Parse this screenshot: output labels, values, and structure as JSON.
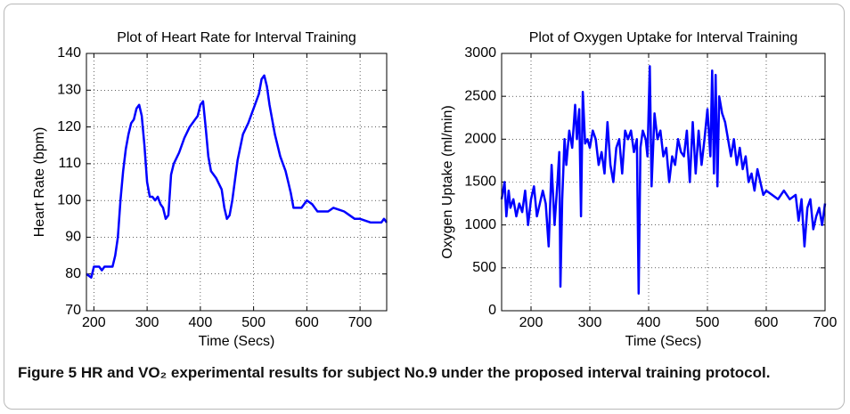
{
  "chart_data": [
    {
      "type": "line",
      "title": "Plot of Heart Rate for Interval Training",
      "x_label": "Time (Secs)",
      "y_label": "Heart Rate (bpm)",
      "xlim": [
        186,
        750
      ],
      "xticks": [
        200,
        300,
        400,
        500,
        600,
        700
      ],
      "ylim": [
        70,
        140
      ],
      "yticks": [
        70,
        80,
        90,
        100,
        110,
        120,
        130,
        140
      ],
      "grid": true,
      "color": "#0000ff",
      "x": [
        186,
        195,
        200,
        210,
        215,
        220,
        235,
        240,
        245,
        250,
        255,
        260,
        265,
        270,
        275,
        280,
        285,
        290,
        295,
        300,
        305,
        310,
        315,
        320,
        325,
        330,
        335,
        340,
        345,
        350,
        360,
        370,
        380,
        390,
        395,
        400,
        405,
        410,
        415,
        420,
        425,
        430,
        440,
        445,
        450,
        455,
        460,
        470,
        480,
        490,
        500,
        510,
        515,
        520,
        525,
        530,
        540,
        550,
        560,
        565,
        570,
        575,
        580,
        590,
        600,
        610,
        620,
        640,
        650,
        670,
        680,
        690,
        700,
        720,
        740,
        745,
        750
      ],
      "values": [
        80,
        79,
        82,
        82,
        81,
        82,
        82,
        85,
        90,
        100,
        108,
        114,
        118,
        121,
        122,
        125,
        126,
        123,
        115,
        105,
        101,
        101,
        100,
        101,
        99,
        98,
        95,
        96,
        107,
        110,
        113,
        117,
        120,
        122,
        123,
        126,
        127,
        120,
        112,
        108,
        107,
        106,
        103,
        98,
        95,
        96,
        100,
        111,
        118,
        121,
        125,
        129,
        133,
        134,
        131,
        126,
        118,
        112,
        108,
        105,
        102,
        98,
        98,
        98,
        100,
        99,
        97,
        97,
        98,
        97,
        96,
        95,
        95,
        94,
        94,
        95,
        94
      ]
    },
    {
      "type": "line",
      "title": "Plot of Oxygen Uptake for Interval Training",
      "x_label": "Time (Secs)",
      "y_label": "Oxygen Uptake (ml/min)",
      "xlim": [
        150,
        700
      ],
      "xticks": [
        200,
        300,
        400,
        500,
        600,
        700
      ],
      "ylim": [
        0,
        3000
      ],
      "yticks": [
        0,
        500,
        1000,
        1500,
        2000,
        2500,
        3000
      ],
      "grid": true,
      "color": "#0000ff",
      "x": [
        150,
        155,
        158,
        162,
        165,
        170,
        175,
        180,
        185,
        190,
        195,
        200,
        205,
        210,
        215,
        220,
        225,
        230,
        235,
        240,
        245,
        248,
        250,
        253,
        257,
        260,
        265,
        270,
        275,
        278,
        282,
        285,
        288,
        292,
        296,
        300,
        305,
        310,
        315,
        320,
        325,
        330,
        335,
        340,
        345,
        350,
        355,
        360,
        365,
        370,
        375,
        380,
        383,
        386,
        390,
        395,
        398,
        402,
        405,
        410,
        415,
        420,
        425,
        430,
        435,
        440,
        445,
        450,
        455,
        460,
        465,
        470,
        475,
        480,
        485,
        490,
        495,
        500,
        505,
        508,
        511,
        514,
        517,
        520,
        525,
        530,
        535,
        540,
        545,
        550,
        555,
        560,
        565,
        570,
        575,
        580,
        585,
        590,
        595,
        600,
        610,
        620,
        630,
        640,
        650,
        655,
        660,
        665,
        670,
        675,
        680,
        685,
        690,
        695,
        700
      ],
      "values": [
        1300,
        1500,
        1100,
        1400,
        1200,
        1300,
        1100,
        1250,
        1150,
        1400,
        1000,
        1300,
        1450,
        1100,
        1250,
        1400,
        1250,
        750,
        1700,
        1000,
        1500,
        1850,
        280,
        1300,
        2000,
        1700,
        2100,
        1900,
        2400,
        2000,
        2350,
        1100,
        2550,
        1950,
        2000,
        1900,
        2100,
        2000,
        1700,
        1850,
        1600,
        2200,
        1700,
        1500,
        1900,
        2000,
        1600,
        2100,
        2000,
        2100,
        1850,
        2000,
        200,
        1900,
        2100,
        2000,
        1800,
        2850,
        1450,
        2300,
        2000,
        2100,
        1800,
        1900,
        1500,
        1800,
        1700,
        2000,
        1850,
        1800,
        2100,
        1500,
        2200,
        1600,
        2100,
        1700,
        2000,
        2350,
        1800,
        2800,
        1600,
        2750,
        1450,
        2500,
        2300,
        2200,
        2000,
        1800,
        2000,
        1700,
        1900,
        1650,
        1800,
        1500,
        1600,
        1400,
        1650,
        1500,
        1350,
        1400,
        1350,
        1300,
        1400,
        1300,
        1350,
        1050,
        1300,
        750,
        1200,
        1300,
        950,
        1100,
        1200,
        1000,
        1250
      ]
    }
  ],
  "caption": "Figure 5 HR and VO₂ experimental results for subject No.9 under the proposed interval training protocol."
}
